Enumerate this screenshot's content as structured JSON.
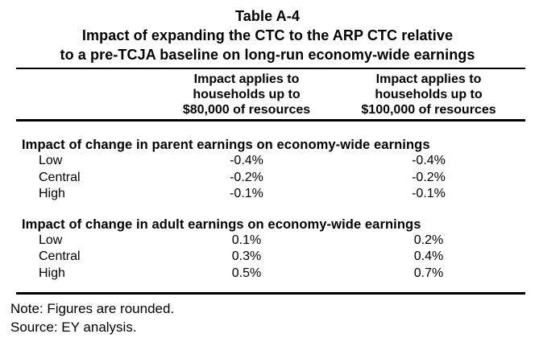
{
  "doc": {
    "table_number": "Table A-4",
    "title_line1": "Impact of expanding the CTC to the ARP CTC relative",
    "title_line2": "to a pre-TCJA baseline on long-run economy-wide earnings",
    "columns": [
      {
        "lines": [
          "Impact applies to",
          "households up to",
          "$80,000 of resources"
        ]
      },
      {
        "lines": [
          "Impact applies to",
          "households up to",
          "$100,000 of resources"
        ]
      }
    ],
    "sections": [
      {
        "header": "Impact of change in parent earnings on economy-wide earnings",
        "rows": [
          {
            "label": "Low",
            "values": [
              "-0.4%",
              "-0.4%"
            ]
          },
          {
            "label": "Central",
            "values": [
              "-0.2%",
              "-0.2%"
            ]
          },
          {
            "label": "High",
            "values": [
              "-0.1%",
              "-0.1%"
            ]
          }
        ]
      },
      {
        "header": "Impact of change in adult earnings on economy-wide earnings",
        "rows": [
          {
            "label": "Low",
            "values": [
              "0.1%",
              "0.2%"
            ]
          },
          {
            "label": "Central",
            "values": [
              "0.3%",
              "0.4%"
            ]
          },
          {
            "label": "High",
            "values": [
              "0.5%",
              "0.7%"
            ]
          }
        ]
      }
    ],
    "note": "Note: Figures are rounded.",
    "source": "Source: EY analysis.",
    "colors": {
      "text": "#000000",
      "background": "#ffffff",
      "rule": "#000000"
    }
  },
  "chart_data": {
    "type": "table",
    "title": "Table A-4: Impact of expanding the CTC to the ARP CTC relative to a pre-TCJA baseline on long-run economy-wide earnings",
    "columns": [
      "",
      "Impact applies to households up to $80,000 of resources",
      "Impact applies to households up to $100,000 of resources"
    ],
    "rows": [
      [
        "Impact of change in parent earnings on economy-wide earnings",
        "",
        ""
      ],
      [
        "Low",
        "-0.4%",
        "-0.4%"
      ],
      [
        "Central",
        "-0.2%",
        "-0.2%"
      ],
      [
        "High",
        "-0.1%",
        "-0.1%"
      ],
      [
        "Impact of change in adult earnings on economy-wide earnings",
        "",
        ""
      ],
      [
        "Low",
        "0.1%",
        "0.2%"
      ],
      [
        "Central",
        "0.3%",
        "0.4%"
      ],
      [
        "High",
        "0.5%",
        "0.7%"
      ]
    ],
    "note": "Note: Figures are rounded.",
    "source": "Source: EY analysis."
  }
}
